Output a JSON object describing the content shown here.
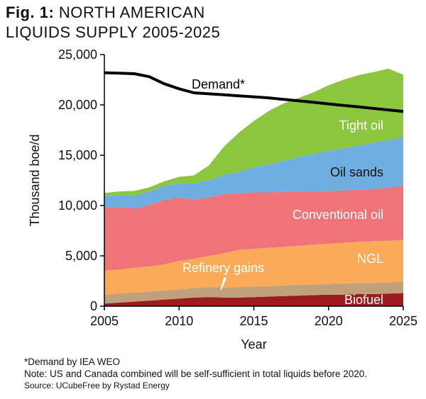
{
  "title": {
    "fig_label": "Fig. 1:",
    "line1": "NORTH AMERICAN",
    "line2": "LIQUIDS SUPPLY 2005-2025"
  },
  "chart_data": {
    "type": "area",
    "stacked": true,
    "xlabel": "Year",
    "ylabel": "Thousand boe/d",
    "xlim": [
      2005,
      2025
    ],
    "ylim": [
      0,
      25000
    ],
    "xticks": [
      2005,
      2010,
      2015,
      2020,
      2025
    ],
    "yticks": [
      0,
      5000,
      10000,
      15000,
      20000,
      25000
    ],
    "ytick_labels": [
      "0",
      "5,000",
      "10,000",
      "15,000",
      "20,000",
      "25,000"
    ],
    "x": [
      2005,
      2006,
      2007,
      2008,
      2009,
      2010,
      2011,
      2012,
      2013,
      2014,
      2015,
      2016,
      2017,
      2018,
      2019,
      2020,
      2021,
      2022,
      2023,
      2024,
      2025
    ],
    "series": [
      {
        "name": "Biofuel",
        "color": "#9b1c1c",
        "values": [
          250,
          350,
          450,
          550,
          650,
          750,
          850,
          900,
          850,
          850,
          900,
          950,
          1000,
          1050,
          1100,
          1150,
          1150,
          1200,
          1200,
          1250,
          1300
        ]
      },
      {
        "name": "Refinery gains",
        "color": "#c0a07a",
        "values": [
          900,
          900,
          900,
          900,
          900,
          900,
          950,
          1000,
          1000,
          1050,
          1050,
          1050,
          1050,
          1050,
          1050,
          1050,
          1100,
          1100,
          1100,
          1100,
          1150
        ]
      },
      {
        "name": "NGL",
        "color": "#f9ab5a",
        "values": [
          2400,
          2400,
          2450,
          2500,
          2600,
          2850,
          2900,
          3100,
          3400,
          3700,
          3750,
          3800,
          3850,
          3900,
          3950,
          4000,
          4050,
          4100,
          4150,
          4150,
          4150
        ]
      },
      {
        "name": "Conventional oil",
        "color": "#ee747a",
        "values": [
          6300,
          6200,
          5900,
          6100,
          6400,
          6300,
          5900,
          5800,
          5900,
          5600,
          5600,
          5500,
          5450,
          5400,
          5300,
          5250,
          5200,
          5150,
          5200,
          5250,
          5400
        ]
      },
      {
        "name": "Oil sands",
        "color": "#6faee0",
        "values": [
          1100,
          1200,
          1300,
          1350,
          1400,
          1450,
          1600,
          1700,
          1900,
          2150,
          2500,
          2800,
          3100,
          3400,
          3750,
          4000,
          4200,
          4400,
          4600,
          4750,
          4800
        ]
      },
      {
        "name": "Tight oil",
        "color": "#8cc63f",
        "values": [
          300,
          350,
          450,
          400,
          450,
          600,
          800,
          1500,
          2800,
          3900,
          4600,
          5300,
          5700,
          5900,
          6100,
          6500,
          6800,
          7000,
          7000,
          7100,
          6200
        ]
      }
    ],
    "line": {
      "name": "Demand*",
      "color": "#000000",
      "values": [
        23200,
        23150,
        23100,
        22800,
        22100,
        21600,
        21200,
        21100,
        21000,
        20900,
        20800,
        20700,
        20550,
        20400,
        20250,
        20100,
        19950,
        19800,
        19650,
        19500,
        19350
      ]
    },
    "labels": {
      "demand": "Demand*",
      "tight_oil": "Tight oil",
      "oil_sands": "Oil sands",
      "conventional_oil": "Conventional oil",
      "ngl": "NGL",
      "refinery_gains": "Refinery gains",
      "biofuel": "Biofuel"
    }
  },
  "notes": {
    "demand_note": "*Demand by IEA WEO",
    "note": "Note: US and Canada combined will be self-sufficient in total liquids before 2020.",
    "source": "Source:  UCubeFree by Rystad Energy"
  }
}
